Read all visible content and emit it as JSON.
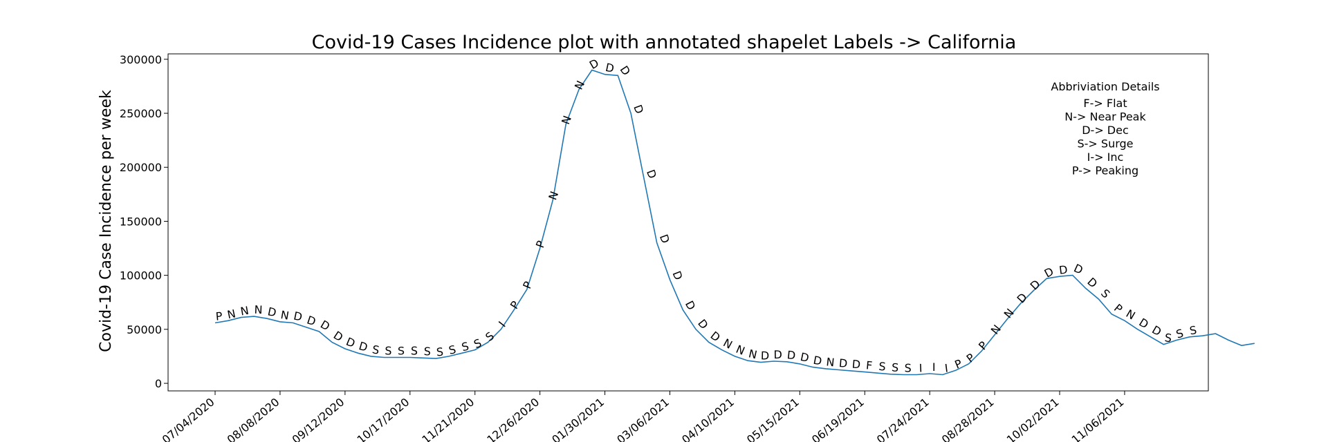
{
  "chart_data": {
    "type": "line",
    "title": "Covid-19 Cases Incidence plot with annotated shapelet Labels  -> California",
    "xlabel": "",
    "ylabel": "Covid-19 Case Incidence per week",
    "ylim": [
      -7000,
      305000
    ],
    "yticks": [
      0,
      50000,
      100000,
      150000,
      200000,
      250000,
      300000
    ],
    "ytick_labels": [
      "0",
      "50000",
      "100000",
      "150000",
      "200000",
      "250000",
      "300000"
    ],
    "xticks": [
      0,
      5,
      10,
      15,
      20,
      25,
      30,
      35,
      40,
      45,
      50,
      55,
      60,
      65,
      70
    ],
    "xtick_labels": [
      "07/04/2020",
      "08/08/2020",
      "09/12/2020",
      "10/17/2020",
      "11/21/2020",
      "12/26/2020",
      "01/30/2021",
      "03/06/2021",
      "04/10/2021",
      "05/15/2021",
      "06/19/2021",
      "07/24/2021",
      "08/28/2021",
      "10/02/2021",
      "11/06/2021"
    ],
    "x_note": "x is week index starting at 07/04/2020 (one point per week)",
    "grid": false,
    "series_color": "#1f77b4",
    "values": [
      56000,
      58000,
      61000,
      62000,
      60000,
      57000,
      56000,
      52000,
      48000,
      38000,
      32000,
      28000,
      25000,
      24000,
      24000,
      24000,
      23500,
      23000,
      25000,
      28000,
      31000,
      38000,
      50000,
      68000,
      87000,
      125000,
      170000,
      240000,
      272000,
      290000,
      286000,
      285000,
      250000,
      190000,
      130000,
      96000,
      68000,
      50000,
      38000,
      31000,
      25000,
      21000,
      19500,
      20500,
      20000,
      18000,
      15000,
      13500,
      12500,
      11500,
      10500,
      9500,
      8500,
      8000,
      8000,
      9000,
      8000,
      12000,
      18000,
      30000,
      45000,
      60000,
      74000,
      86000,
      97000,
      99000,
      100000,
      88000,
      78000,
      64000,
      58000,
      50000,
      43000,
      36000,
      40000,
      43000,
      44000,
      46000,
      40000,
      35000,
      37000
    ],
    "annotations": [
      "P",
      "N",
      "N",
      "N",
      "D",
      "N",
      "D",
      "D",
      "D",
      "D",
      "D",
      "D",
      "S",
      "S",
      "S",
      "S",
      "S",
      "S",
      "S",
      "S",
      "S",
      "S",
      "I",
      "P",
      "P",
      "P",
      "N",
      "N",
      "N",
      "D",
      "D",
      "D",
      "D",
      "D",
      "D",
      "D",
      "D",
      "D",
      "D",
      "N",
      "N",
      "N",
      "D",
      "D",
      "D",
      "D",
      "D",
      "N",
      "D",
      "D",
      "F",
      "S",
      "S",
      "S",
      "I",
      "I",
      "I",
      "P",
      "P",
      "P",
      "N",
      "N",
      "D",
      "D",
      "D",
      "D",
      "D",
      "D",
      "S",
      "P",
      "N",
      "D",
      "D",
      "S",
      "S",
      "S"
    ]
  },
  "legend_box": {
    "heading": "Abbriviation Details",
    "lines": [
      "F-> Flat",
      "N-> Near Peak",
      "D-> Dec",
      "S-> Surge",
      "I-> Inc",
      "P-> Peaking"
    ]
  }
}
